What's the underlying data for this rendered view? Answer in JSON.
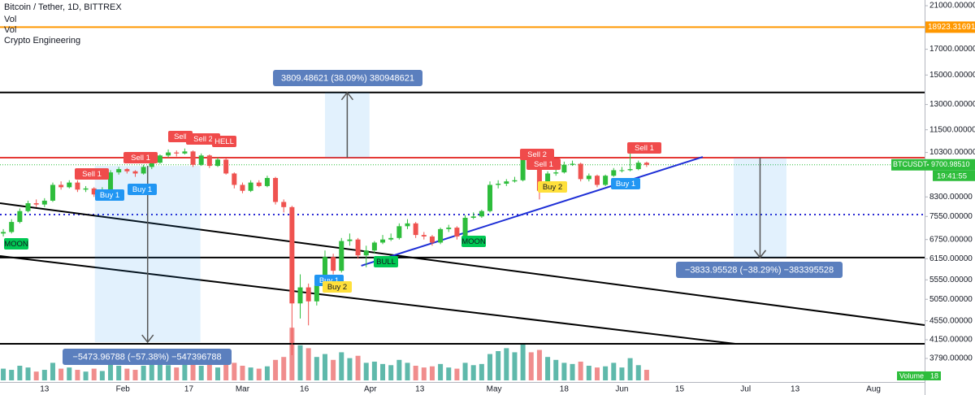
{
  "chart_data": {
    "type": "candlestick",
    "title": "Bitcoin / Tether, 1D, BITTREX",
    "indicators": [
      "Vol",
      "Vol",
      "Crypto Engineering"
    ],
    "log_scale": true,
    "grid": true,
    "up_color": "#2ebd3c",
    "down_color": "#ef5350",
    "volume_up_color": "#5fb9ab",
    "volume_down_color": "#f08d8d",
    "xlim": [
      1.2,
      225.4
    ],
    "xticks": [
      {
        "value": 12,
        "label": "13"
      },
      {
        "value": 31,
        "label": "Feb"
      },
      {
        "value": 47,
        "label": "17"
      },
      {
        "value": 60,
        "label": "Mar"
      },
      {
        "value": 75,
        "label": "16"
      },
      {
        "value": 91,
        "label": "Apr"
      },
      {
        "value": 103,
        "label": "13"
      },
      {
        "value": 121,
        "label": "May"
      },
      {
        "value": 138,
        "label": "18"
      },
      {
        "value": 152,
        "label": "Jun"
      },
      {
        "value": 166,
        "label": "15"
      },
      {
        "value": 182,
        "label": "Jul"
      },
      {
        "value": 194,
        "label": "13"
      },
      {
        "value": 213,
        "label": "Aug"
      }
    ],
    "ylim": [
      3380,
      21590
    ],
    "yticks": [
      {
        "value": 21000,
        "label": "21000.00000"
      },
      {
        "value": 17000,
        "label": "17000.00000"
      },
      {
        "value": 15000,
        "label": "15000.00000"
      },
      {
        "value": 13000,
        "label": "13000.00000"
      },
      {
        "value": 11500,
        "label": "11500.00000"
      },
      {
        "value": 10300,
        "label": "10300.00000"
      },
      {
        "value": 8300,
        "label": "8300.00000"
      },
      {
        "value": 7550,
        "label": "7550.00000"
      },
      {
        "value": 6750,
        "label": "6750.00000"
      },
      {
        "value": 6150,
        "label": "6150.00000"
      },
      {
        "value": 5550,
        "label": "5550.00000"
      },
      {
        "value": 5050,
        "label": "5050.00000"
      },
      {
        "value": 4550,
        "label": "4550.00000"
      },
      {
        "value": 4150,
        "label": "4150.00000"
      },
      {
        "value": 3790,
        "label": "3790.00000"
      }
    ],
    "x": [
      2,
      4,
      6,
      8,
      10,
      12,
      14,
      16,
      18,
      20,
      22,
      24,
      26,
      28,
      30,
      32,
      34,
      36,
      38,
      40,
      42,
      44,
      46,
      48,
      50,
      52,
      54,
      56,
      58,
      60,
      62,
      64,
      66,
      68,
      70,
      72,
      74,
      76,
      78,
      80,
      82,
      84,
      86,
      88,
      90,
      92,
      94,
      96,
      98,
      100,
      102,
      104,
      106,
      108,
      110,
      112,
      114,
      116,
      118,
      120,
      122,
      124,
      126,
      128,
      130,
      132,
      134,
      136,
      138,
      140,
      142,
      144,
      146,
      148,
      150,
      152,
      154,
      156,
      158
    ],
    "candles": [
      [
        6950,
        7100,
        6850,
        7000
      ],
      [
        7000,
        7450,
        6950,
        7350
      ],
      [
        7350,
        7850,
        7300,
        7750
      ],
      [
        7750,
        8150,
        7700,
        8050
      ],
      [
        8050,
        8200,
        7900,
        8000
      ],
      [
        8000,
        8250,
        7900,
        8150
      ],
      [
        8150,
        8900,
        8100,
        8800
      ],
      [
        8800,
        8950,
        8600,
        8700
      ],
      [
        8700,
        9000,
        8650,
        8900
      ],
      [
        8900,
        9000,
        8500,
        8600
      ],
      [
        8600,
        8750,
        8500,
        8650
      ],
      [
        8650,
        8700,
        8300,
        8400
      ],
      [
        8400,
        8700,
        8350,
        8600
      ],
      [
        8600,
        9450,
        8550,
        9350
      ],
      [
        9350,
        9600,
        9250,
        9500
      ],
      [
        9500,
        9550,
        9300,
        9400
      ],
      [
        9400,
        9450,
        9150,
        9300
      ],
      [
        9300,
        9700,
        9250,
        9600
      ],
      [
        9600,
        9900,
        9500,
        9800
      ],
      [
        9800,
        10200,
        9750,
        10150
      ],
      [
        10150,
        10450,
        10050,
        10300
      ],
      [
        10300,
        10400,
        10100,
        10250
      ],
      [
        10250,
        10500,
        10200,
        10350
      ],
      [
        10350,
        10400,
        9600,
        9700
      ],
      [
        9700,
        10250,
        9650,
        10150
      ],
      [
        10150,
        10200,
        9550,
        9650
      ],
      [
        9650,
        10050,
        9600,
        9950
      ],
      [
        9950,
        10000,
        9250,
        9300
      ],
      [
        9300,
        9350,
        8650,
        8800
      ],
      [
        8800,
        8900,
        8450,
        8550
      ],
      [
        8550,
        9000,
        8500,
        8900
      ],
      [
        8900,
        9000,
        8700,
        8750
      ],
      [
        8750,
        9200,
        8700,
        9100
      ],
      [
        9100,
        9150,
        8000,
        8100
      ],
      [
        8100,
        8200,
        7700,
        7900
      ],
      [
        7900,
        7950,
        3850,
        4950
      ],
      [
        4950,
        5700,
        4600,
        5350
      ],
      [
        5350,
        5450,
        4450,
        5000
      ],
      [
        5000,
        5500,
        4900,
        5400
      ],
      [
        5400,
        6400,
        5300,
        6200
      ],
      [
        6200,
        6300,
        5700,
        5800
      ],
      [
        5800,
        6800,
        5750,
        6700
      ],
      [
        6700,
        6950,
        6550,
        6750
      ],
      [
        6750,
        6800,
        6150,
        6250
      ],
      [
        6250,
        6550,
        5900,
        6400
      ],
      [
        6400,
        6700,
        6300,
        6650
      ],
      [
        6650,
        6900,
        6600,
        6750
      ],
      [
        6750,
        6950,
        6700,
        6800
      ],
      [
        6800,
        7300,
        6750,
        7200
      ],
      [
        7200,
        7450,
        7100,
        7300
      ],
      [
        7300,
        7350,
        6800,
        6900
      ],
      [
        6900,
        7000,
        6750,
        6850
      ],
      [
        6850,
        6900,
        6550,
        6650
      ],
      [
        6650,
        7150,
        6600,
        7100
      ],
      [
        7100,
        7250,
        7000,
        7150
      ],
      [
        7150,
        7200,
        6750,
        6850
      ],
      [
        6850,
        7600,
        6800,
        7500
      ],
      [
        7500,
        7700,
        7450,
        7550
      ],
      [
        7550,
        7800,
        7500,
        7750
      ],
      [
        7750,
        8950,
        7700,
        8800
      ],
      [
        8800,
        9000,
        8650,
        8850
      ],
      [
        8850,
        9050,
        8750,
        8950
      ],
      [
        8950,
        9150,
        8900,
        9000
      ],
      [
        9000,
        10050,
        8950,
        9950
      ],
      [
        9950,
        10050,
        9500,
        9550
      ],
      [
        9550,
        9600,
        8200,
        8550
      ],
      [
        8550,
        9400,
        8500,
        9300
      ],
      [
        9300,
        9600,
        9200,
        9350
      ],
      [
        9350,
        9850,
        9300,
        9700
      ],
      [
        9700,
        9900,
        9650,
        9750
      ],
      [
        9750,
        9800,
        8950,
        9050
      ],
      [
        9050,
        9300,
        8950,
        9200
      ],
      [
        9200,
        9250,
        8700,
        8800
      ],
      [
        8800,
        9250,
        8750,
        9200
      ],
      [
        9200,
        9550,
        9150,
        9450
      ],
      [
        9450,
        9600,
        9350,
        9450
      ],
      [
        9450,
        10400,
        9400,
        9500
      ],
      [
        9500,
        9900,
        9450,
        9800
      ],
      [
        9800,
        9850,
        9600,
        9700
      ]
    ],
    "volume": [
      20,
      18,
      25,
      22,
      15,
      18,
      30,
      20,
      22,
      18,
      15,
      20,
      16,
      28,
      25,
      20,
      18,
      25,
      28,
      30,
      26,
      22,
      28,
      32,
      25,
      30,
      22,
      28,
      30,
      25,
      22,
      20,
      24,
      35,
      40,
      90,
      60,
      55,
      40,
      45,
      35,
      48,
      38,
      42,
      30,
      32,
      28,
      26,
      35,
      30,
      25,
      22,
      24,
      28,
      22,
      20,
      30,
      26,
      28,
      45,
      50,
      55,
      48,
      62,
      48,
      52,
      40,
      35,
      30,
      28,
      32,
      25,
      22,
      24,
      30,
      22,
      38,
      26,
      18
    ],
    "volume_lim": [
      0,
      100
    ],
    "volume_tag": {
      "label": "Volume",
      "value": 18
    },
    "symbol": "BTCUSDT",
    "last_price": {
      "value": 9700.9851,
      "label": "9700.98510"
    },
    "clock": "19:41:55",
    "levels": [
      {
        "price": 18923.31691,
        "color": "#ff9800",
        "style": "solid"
      },
      {
        "price": 13780,
        "color": "#000000",
        "style": "solid"
      },
      {
        "price": 10040,
        "color": "#e53935",
        "style": "solid"
      },
      {
        "price": 7620,
        "color": "#2a2ad4",
        "style": "dotted"
      },
      {
        "price": 6184,
        "color": "#000000",
        "style": "solid"
      },
      {
        "price": 4068,
        "color": "#000000",
        "style": "solid"
      }
    ],
    "trendlines": [
      {
        "x": [
          1.2,
          225.4
        ],
        "price": [
          8050,
          4455
        ],
        "color": "#000000"
      },
      {
        "x": [
          1.2,
          179.5
        ],
        "price": [
          6230,
          4068
        ],
        "color": "#000000"
      },
      {
        "x": [
          88.8,
          171.6
        ],
        "price": [
          5943,
          10080
        ],
        "color": "#1e2fd6"
      }
    ],
    "measures": [
      {
        "x": [
          24.2,
          49.8
        ],
        "price": [
          9650,
          4100
        ],
        "label": "−5473.96788 (−57.38%) −547396788"
      },
      {
        "x": [
          80.0,
          90.8
        ],
        "price": [
          10040,
          13780
        ],
        "label": "3809.48621 (38.09%) 380948621"
      },
      {
        "x": [
          179.1,
          191.9
        ],
        "price": [
          10040,
          6184
        ],
        "label": "−3833.95528 (−38.29%) −383395528"
      }
    ],
    "signals": [
      {
        "text": "MOON",
        "color": "#00c853"
      },
      {
        "text": "Sell 1",
        "color": "#f04b4b"
      },
      {
        "text": "Buy 1",
        "color": "#2196f3"
      },
      {
        "text": "Sell 1",
        "color": "#f04b4b"
      },
      {
        "text": "Buy 1",
        "color": "#2196f3"
      },
      {
        "text": "Sell",
        "color": "#f04b4b"
      },
      {
        "text": "Sell 2",
        "color": "#f04b4b"
      },
      {
        "text": "HELL",
        "color": "#f04b4b"
      },
      {
        "text": "Buy 1",
        "color": "#2196f3"
      },
      {
        "text": "Buy 2",
        "color": "#ffe03b"
      },
      {
        "text": "BULL",
        "color": "#00c853"
      },
      {
        "text": "MOON",
        "color": "#00c853"
      },
      {
        "text": "Sell 2",
        "color": "#f04b4b"
      },
      {
        "text": "Sell 1",
        "color": "#f04b4b"
      },
      {
        "text": "Buy 2",
        "color": "#ffe03b"
      },
      {
        "text": "Buy 1",
        "color": "#2196f3"
      },
      {
        "text": "Sell 1",
        "color": "#f04b4b"
      }
    ]
  }
}
